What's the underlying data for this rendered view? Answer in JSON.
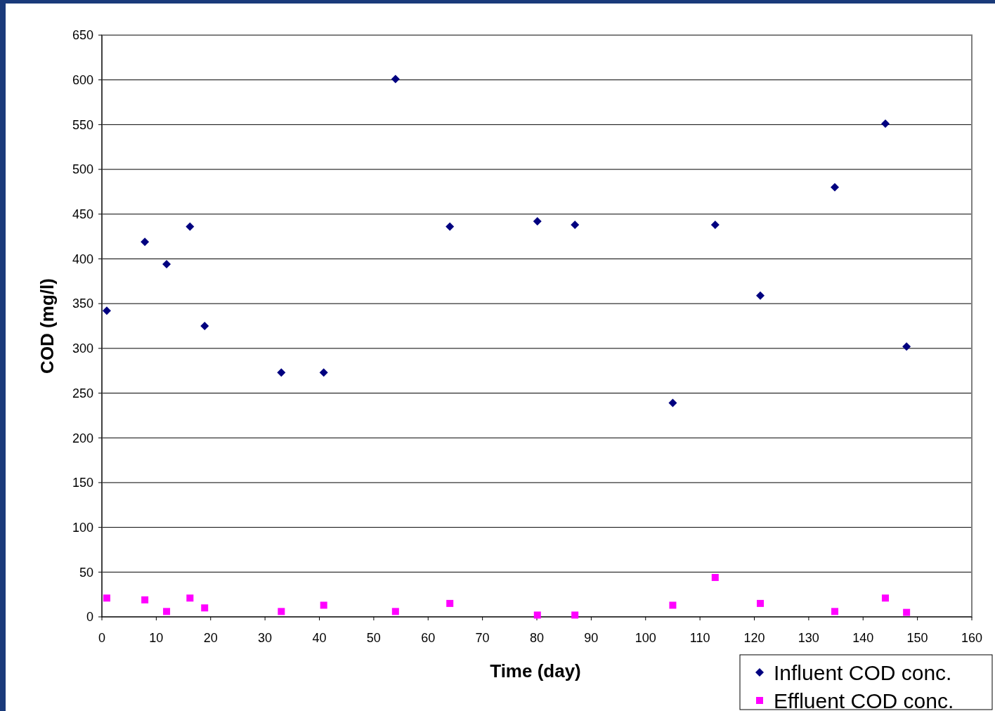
{
  "chart_data": {
    "type": "scatter",
    "xlabel": "Time (day)",
    "ylabel": "COD (mg/l)",
    "xlim": [
      0,
      160
    ],
    "xticks": [
      0,
      10,
      20,
      30,
      40,
      50,
      60,
      70,
      80,
      90,
      100,
      110,
      120,
      130,
      140,
      150,
      160
    ],
    "ylim": [
      0,
      650
    ],
    "yticks": [
      0,
      50,
      100,
      150,
      200,
      250,
      300,
      350,
      400,
      450,
      500,
      550,
      600,
      650
    ],
    "grid": "y",
    "legend": "bottom right",
    "x": [
      0.9,
      7.9,
      11.9,
      16.2,
      18.9,
      33,
      40.8,
      54,
      64,
      80.1,
      87,
      105,
      112.8,
      121.1,
      134.8,
      144.1,
      148
    ],
    "series": [
      {
        "name": "Influent COD conc.",
        "color": "#000080",
        "marker": "diamond",
        "values": [
          342,
          419,
          394,
          436,
          325,
          273,
          273,
          601,
          436,
          442,
          438,
          239,
          438,
          359,
          480,
          551,
          302
        ]
      },
      {
        "name": "Effluent COD conc.",
        "color": "#ff00ff",
        "marker": "square",
        "values": [
          21,
          19,
          6,
          21,
          10,
          6,
          13,
          6,
          15,
          2,
          2,
          13,
          44,
          15,
          6,
          21,
          5
        ]
      }
    ]
  }
}
